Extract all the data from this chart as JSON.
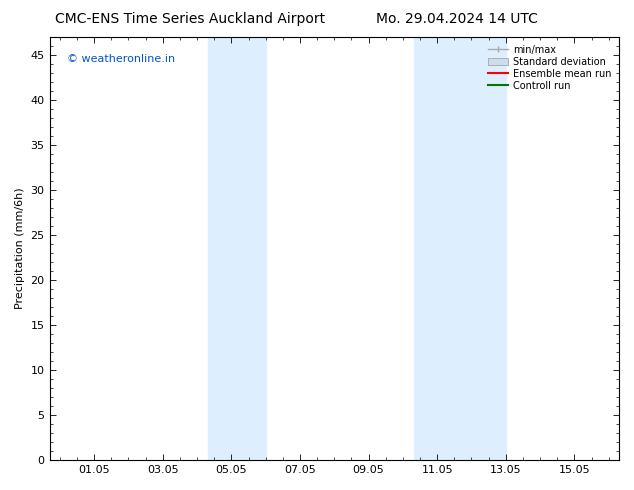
{
  "title_left": "CMC-ENS Time Series Auckland Airport",
  "title_right": "Mo. 29.04.2024 14 UTC",
  "ylabel": "Precipitation (mm/6h)",
  "watermark": "© weatheronline.in",
  "watermark_color": "#0055cc",
  "xlim": [
    -0.3,
    16.3
  ],
  "ylim": [
    0,
    47
  ],
  "xtick_labels": [
    "01.05",
    "03.05",
    "05.05",
    "07.05",
    "09.05",
    "11.05",
    "13.05",
    "15.05"
  ],
  "xtick_positions": [
    1,
    3,
    5,
    7,
    9,
    11,
    13,
    15
  ],
  "ytick_positions": [
    0,
    5,
    10,
    15,
    20,
    25,
    30,
    35,
    40,
    45
  ],
  "shaded_regions": [
    {
      "xmin": 4.33,
      "xmax": 4.75
    },
    {
      "xmin": 4.75,
      "xmax": 6.0
    },
    {
      "xmin": 10.33,
      "xmax": 11.5
    },
    {
      "xmin": 11.5,
      "xmax": 13.0
    }
  ],
  "shade_color": "#ddeeff",
  "background_color": "#ffffff",
  "legend_entries": [
    {
      "label": "min/max",
      "color": "#aaaaaa",
      "style": "minmax"
    },
    {
      "label": "Standard deviation",
      "color": "#ccddee",
      "style": "std"
    },
    {
      "label": "Ensemble mean run",
      "color": "#ff0000",
      "style": "line"
    },
    {
      "label": "Controll run",
      "color": "#007700",
      "style": "line"
    }
  ],
  "title_fontsize": 10,
  "axis_fontsize": 8,
  "tick_fontsize": 8,
  "legend_fontsize": 7,
  "watermark_fontsize": 8
}
